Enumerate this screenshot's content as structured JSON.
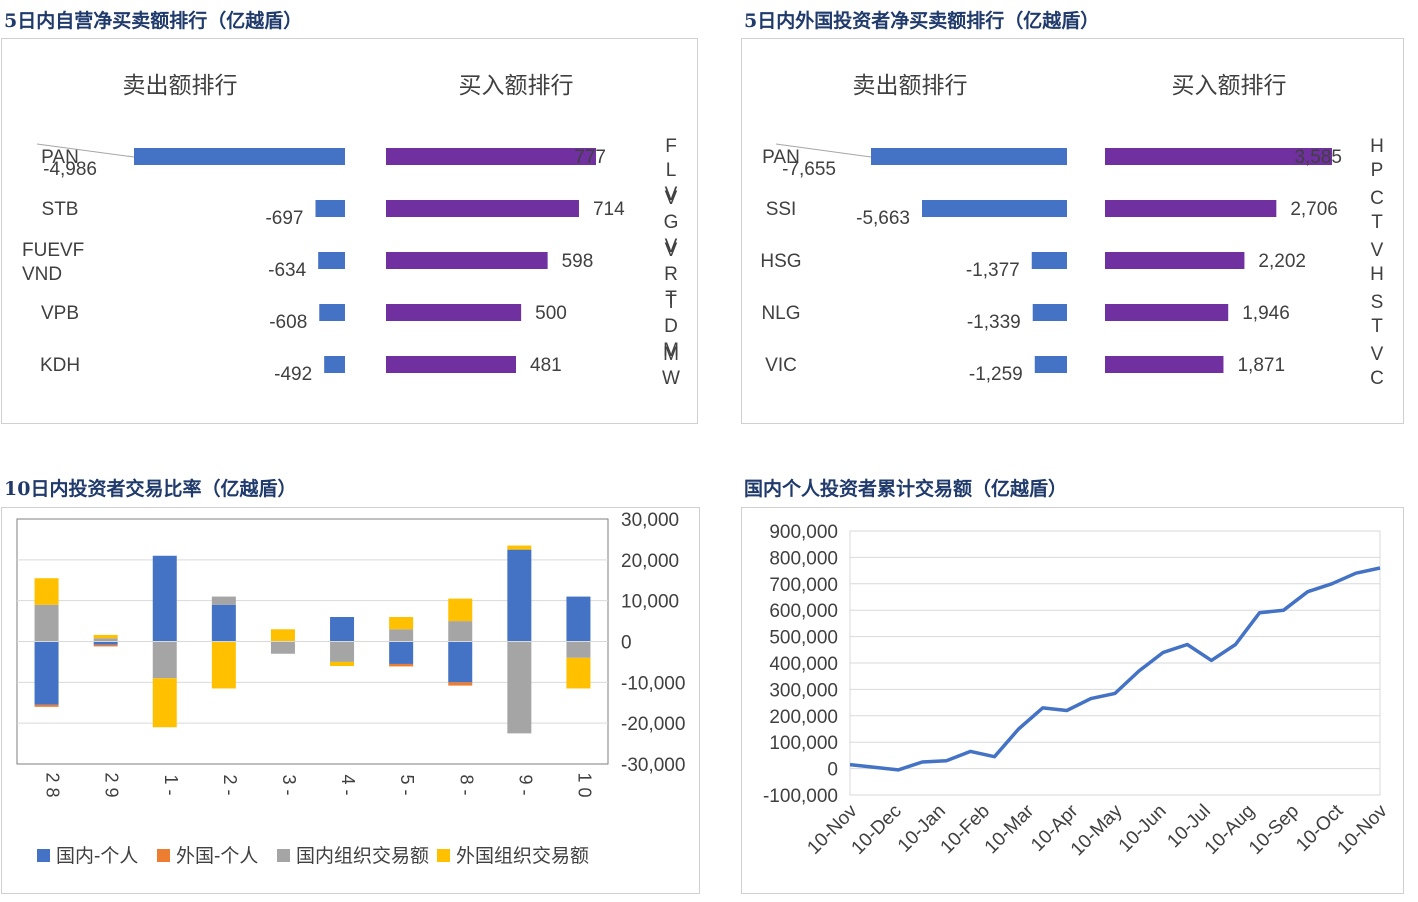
{
  "panels": {
    "prop": {
      "title": "5日内自营净买卖额排行（亿越盾）",
      "sell_header": "卖出额排行",
      "buy_header": "买入额排行",
      "sell_tickers": [
        "PAN",
        "STB",
        "FUEVFVND",
        "VPB",
        "KDH"
      ],
      "sell_values": [
        -4986,
        -697,
        -634,
        -608,
        -492
      ],
      "buy_values": [
        777,
        714,
        598,
        500,
        481
      ],
      "buy_tickers": [
        "FLV",
        "VGV",
        "VRT",
        "TDM",
        "MW"
      ],
      "sell_color": "#4472c4",
      "buy_color": "#7030a0"
    },
    "foreign": {
      "title": "5日内外国投资者净买卖额排行（亿越盾）",
      "sell_header": "卖出额排行",
      "buy_header": "买入额排行",
      "sell_tickers": [
        "PAN",
        "SSI",
        "HSG",
        "NLG",
        "VIC"
      ],
      "sell_values": [
        -7655,
        -5663,
        -1377,
        -1339,
        -1259
      ],
      "buy_values": [
        3585,
        2706,
        2202,
        1946,
        1871
      ],
      "buy_tickers": [
        "HP",
        "CT",
        "VH",
        "ST",
        "VC"
      ],
      "sell_color": "#4472c4",
      "buy_color": "#7030a0"
    },
    "ratio": {
      "title": "10日内投资者交易比率（亿越盾）"
    },
    "cumulative": {
      "title": "国内个人投资者累计交易额（亿越盾）"
    }
  },
  "chart_data": [
    {
      "type": "bar",
      "title": "5日内自营净买卖额排行（亿越盾）",
      "series": [
        {
          "name": "卖出额排行",
          "categories": [
            "PAN",
            "STB",
            "FUEVFVND",
            "VPB",
            "KDH"
          ],
          "values": [
            -4986,
            -697,
            -634,
            -608,
            -492
          ]
        },
        {
          "name": "买入额排行",
          "categories": [
            "FLV",
            "VGV",
            "VRT",
            "TDM",
            "MW"
          ],
          "values": [
            777,
            714,
            598,
            500,
            481
          ]
        }
      ]
    },
    {
      "type": "bar",
      "title": "5日内外国投资者净买卖额排行（亿越盾）",
      "series": [
        {
          "name": "卖出额排行",
          "categories": [
            "PAN",
            "SSI",
            "HSG",
            "NLG",
            "VIC"
          ],
          "values": [
            -7655,
            -5663,
            -1377,
            -1339,
            -1259
          ]
        },
        {
          "name": "买入额排行",
          "categories": [
            "HP",
            "CT",
            "VH",
            "ST",
            "VC"
          ],
          "values": [
            3585,
            2706,
            2202,
            1946,
            1871
          ]
        }
      ]
    },
    {
      "type": "bar",
      "stacked": true,
      "title": "10日内投资者交易比率（亿越盾）",
      "categories": [
        "28",
        "29",
        "1-",
        "2-",
        "3-",
        "4-",
        "5-",
        "8-",
        "9-",
        "10"
      ],
      "ylim": [
        -30000,
        30000
      ],
      "yticks": [
        "30,000",
        "20,000",
        "10,000",
        "0",
        "-10,000",
        "-20,000",
        "-30,000"
      ],
      "legend_position": "bottom",
      "series": [
        {
          "name": "国内-个人",
          "color": "#4472c4",
          "values": [
            -15500,
            -800,
            21000,
            9000,
            0,
            6000,
            -5500,
            -10000,
            22500,
            11000
          ]
        },
        {
          "name": "外国-个人",
          "color": "#ed7d31",
          "values": [
            -500,
            -400,
            0,
            0,
            0,
            0,
            -600,
            -800,
            0,
            0
          ]
        },
        {
          "name": "国内组织交易额",
          "color": "#a5a5a5",
          "values": [
            9000,
            800,
            -9000,
            2000,
            -3000,
            -5000,
            3000,
            5000,
            -22500,
            -4000
          ]
        },
        {
          "name": "外国组织交易额",
          "color": "#ffc000",
          "values": [
            6500,
            800,
            -12000,
            -11500,
            3000,
            -1000,
            3000,
            5500,
            1000,
            -7500
          ]
        }
      ]
    },
    {
      "type": "line",
      "title": "国内个人投资者累计交易额（亿越盾）",
      "ylim": [
        -100000,
        900000
      ],
      "yticks": [
        "900,000",
        "800,000",
        "700,000",
        "600,000",
        "500,000",
        "400,000",
        "300,000",
        "200,000",
        "100,000",
        "0",
        "-100,000"
      ],
      "xticks": [
        "10-Nov",
        "10-Dec",
        "10-Jan",
        "10-Feb",
        "10-Mar",
        "10-Apr",
        "10-May",
        "10-Jun",
        "10-Jul",
        "10-Aug",
        "10-Sep",
        "10-Oct",
        "10-Nov"
      ],
      "series": [
        {
          "name": "",
          "color": "#4472c4",
          "values": [
            15000,
            5000,
            -5000,
            25000,
            30000,
            65000,
            45000,
            150000,
            230000,
            220000,
            265000,
            285000,
            370000,
            440000,
            470000,
            410000,
            470000,
            590000,
            600000,
            670000,
            700000,
            740000,
            760000
          ]
        }
      ]
    }
  ]
}
